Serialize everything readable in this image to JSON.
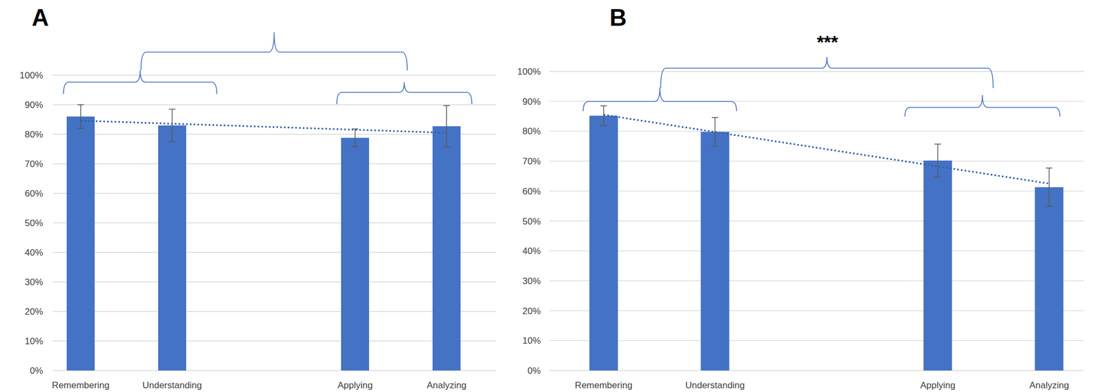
{
  "chart_data": [
    {
      "type": "bar",
      "title": "A",
      "categories": [
        "Remembering",
        "Understanding",
        null,
        "Applying",
        "Analyzing"
      ],
      "values": [
        86,
        83,
        null,
        78.8,
        82.7
      ],
      "errors": [
        4,
        5.5,
        null,
        3,
        7
      ],
      "trendline": [
        84.6,
        80.5
      ],
      "color": "#4472c4",
      "ylim": [
        0,
        100
      ],
      "yticks": [
        {
          "value": 0,
          "label": "0%"
        },
        {
          "value": 10,
          "label": "10%"
        },
        {
          "value": 20,
          "label": "20%"
        },
        {
          "value": 30,
          "label": "30%"
        },
        {
          "value": 40,
          "label": "40%"
        },
        {
          "value": 50,
          "label": "50%"
        },
        {
          "value": 60,
          "label": "60%"
        },
        {
          "value": 70,
          "label": "70%"
        },
        {
          "value": 80,
          "label": "80%"
        },
        {
          "value": 90,
          "label": "90%"
        },
        {
          "value": 100,
          "label": "100%"
        }
      ],
      "grid": true
    },
    {
      "type": "bar",
      "title": "B",
      "categories": [
        "Remembering",
        "Understanding",
        null,
        "Applying",
        "Analyzing"
      ],
      "values": [
        85.2,
        79.8,
        null,
        70.2,
        61.3
      ],
      "errors": [
        3.3,
        4.8,
        null,
        5.5,
        6.4
      ],
      "trendline": [
        85.5,
        62.5
      ],
      "annotations": [
        "***"
      ],
      "color": "#4472c4",
      "ylim": [
        0,
        100
      ],
      "yticks": [
        {
          "value": 0,
          "label": "0%"
        },
        {
          "value": 10,
          "label": "10%"
        },
        {
          "value": 20,
          "label": "20%"
        },
        {
          "value": 30,
          "label": "30%"
        },
        {
          "value": 40,
          "label": "40%"
        },
        {
          "value": 50,
          "label": "50%"
        },
        {
          "value": 60,
          "label": "60%"
        },
        {
          "value": 70,
          "label": "70%"
        },
        {
          "value": 80,
          "label": "80%"
        },
        {
          "value": 90,
          "label": "90%"
        },
        {
          "value": 100,
          "label": "100%"
        }
      ],
      "grid": true
    }
  ]
}
